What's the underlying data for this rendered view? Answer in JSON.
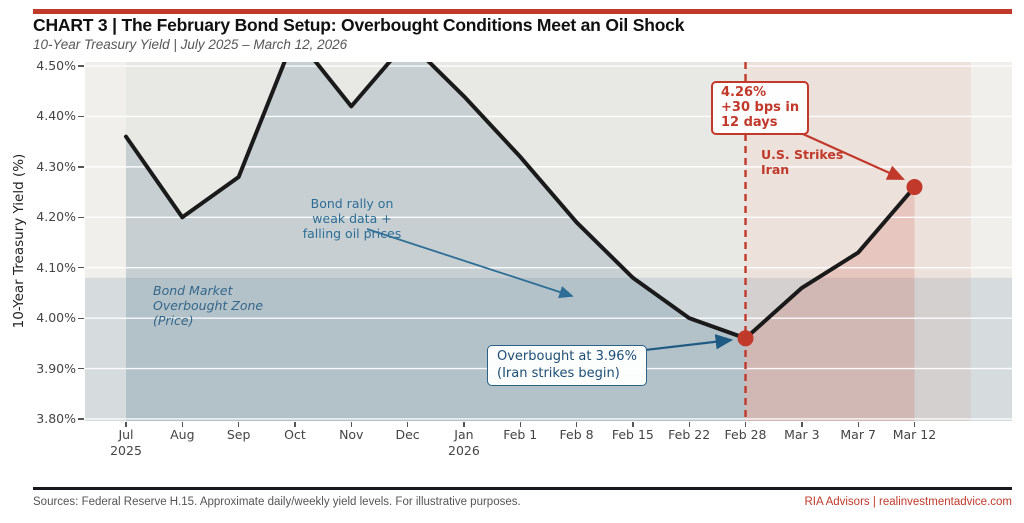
{
  "header": {
    "title": "CHART 3  |  The February Bond Setup: Overbought Conditions Meet an Oil Shock",
    "subtitle": "10-Year Treasury Yield  |  July 2025 – March 12, 2026"
  },
  "footer": {
    "sources": "Sources: Federal Reserve H.15. Approximate daily/weekly yield levels. For illustrative purposes.",
    "brand": "RIA Advisors | realinvestmentadvice.com"
  },
  "colors": {
    "accent_red": "#c0392b",
    "steel_blue": "#2e6e96",
    "navy_blue": "#1f5a82",
    "line_black": "#1a1a1a",
    "plot_bg": "#f1efeb",
    "rally_span": "rgba(120,145,160,0.07)",
    "overbought_band": "rgba(110,145,172,0.20)",
    "blue_fill": "rgba(70,108,140,0.20)",
    "pink_span": "rgba(200,85,70,0.09)",
    "red_fill": "rgba(195,65,48,0.17)",
    "gridline": "rgba(255,255,255,0.9)"
  },
  "chart_data": {
    "type": "line",
    "title": "The February Bond Setup: Overbought Conditions Meet an Oil Shock",
    "ylabel": "10-Year Treasury Yield (%)",
    "ylim": [
      3.796,
      4.508
    ],
    "categories": [
      {
        "label": "Jul",
        "sub": "2025"
      },
      {
        "label": "Aug"
      },
      {
        "label": "Sep"
      },
      {
        "label": "Oct"
      },
      {
        "label": "Nov"
      },
      {
        "label": "Dec"
      },
      {
        "label": "Jan",
        "sub": "2026"
      },
      {
        "label": "Feb 1"
      },
      {
        "label": "Feb 8"
      },
      {
        "label": "Feb 15"
      },
      {
        "label": "Feb 22"
      },
      {
        "label": "Feb 28"
      },
      {
        "label": "Mar 3"
      },
      {
        "label": "Mar 7"
      },
      {
        "label": "Mar 12"
      }
    ],
    "values": [
      4.36,
      4.2,
      4.28,
      4.56,
      4.42,
      4.55,
      4.44,
      4.32,
      4.19,
      4.08,
      4.0,
      3.96,
      4.06,
      4.13,
      4.26
    ],
    "yticks": [
      {
        "value": 4.5,
        "label": "4.50%"
      },
      {
        "value": 4.4,
        "label": "4.40%"
      },
      {
        "value": 4.3,
        "label": "4.30%"
      },
      {
        "value": 4.2,
        "label": "4.20%"
      },
      {
        "value": 4.1,
        "label": "4.10%"
      },
      {
        "value": 4.0,
        "label": "4.00%"
      },
      {
        "value": 3.9,
        "label": "3.90%"
      },
      {
        "value": 3.8,
        "label": "3.80%"
      }
    ],
    "grid": true,
    "legend": "none",
    "overbought_zone_top": 4.08,
    "rally_span_range": {
      "from_index": 0,
      "to_index": 11
    },
    "blue_fill_range": {
      "from_index": 0,
      "to_index": 11
    },
    "red_fill_range": {
      "from_index": 11,
      "to_index": 14
    },
    "event_line_index": 11,
    "pink_span_range": {
      "from_index": 11,
      "to_index": 15
    },
    "markers": [
      {
        "index": 11,
        "value": 3.96,
        "label": "Iran strikes begin"
      },
      {
        "index": 14,
        "value": 4.26,
        "label": "U.S. strikes Iran peak"
      }
    ],
    "annotations": {
      "zone_label": "Bond Market\nOverbought Zone\n(Price)",
      "rally_note": "Bond rally on\nweak data +\nfalling oil prices",
      "overbought_callout": "Overbought at 3.96%\n(Iran strikes begin)",
      "spike_callout": "4.26%\n+30 bps in\n12 days",
      "strikes_label": "U.S. Strikes\nIran"
    }
  }
}
